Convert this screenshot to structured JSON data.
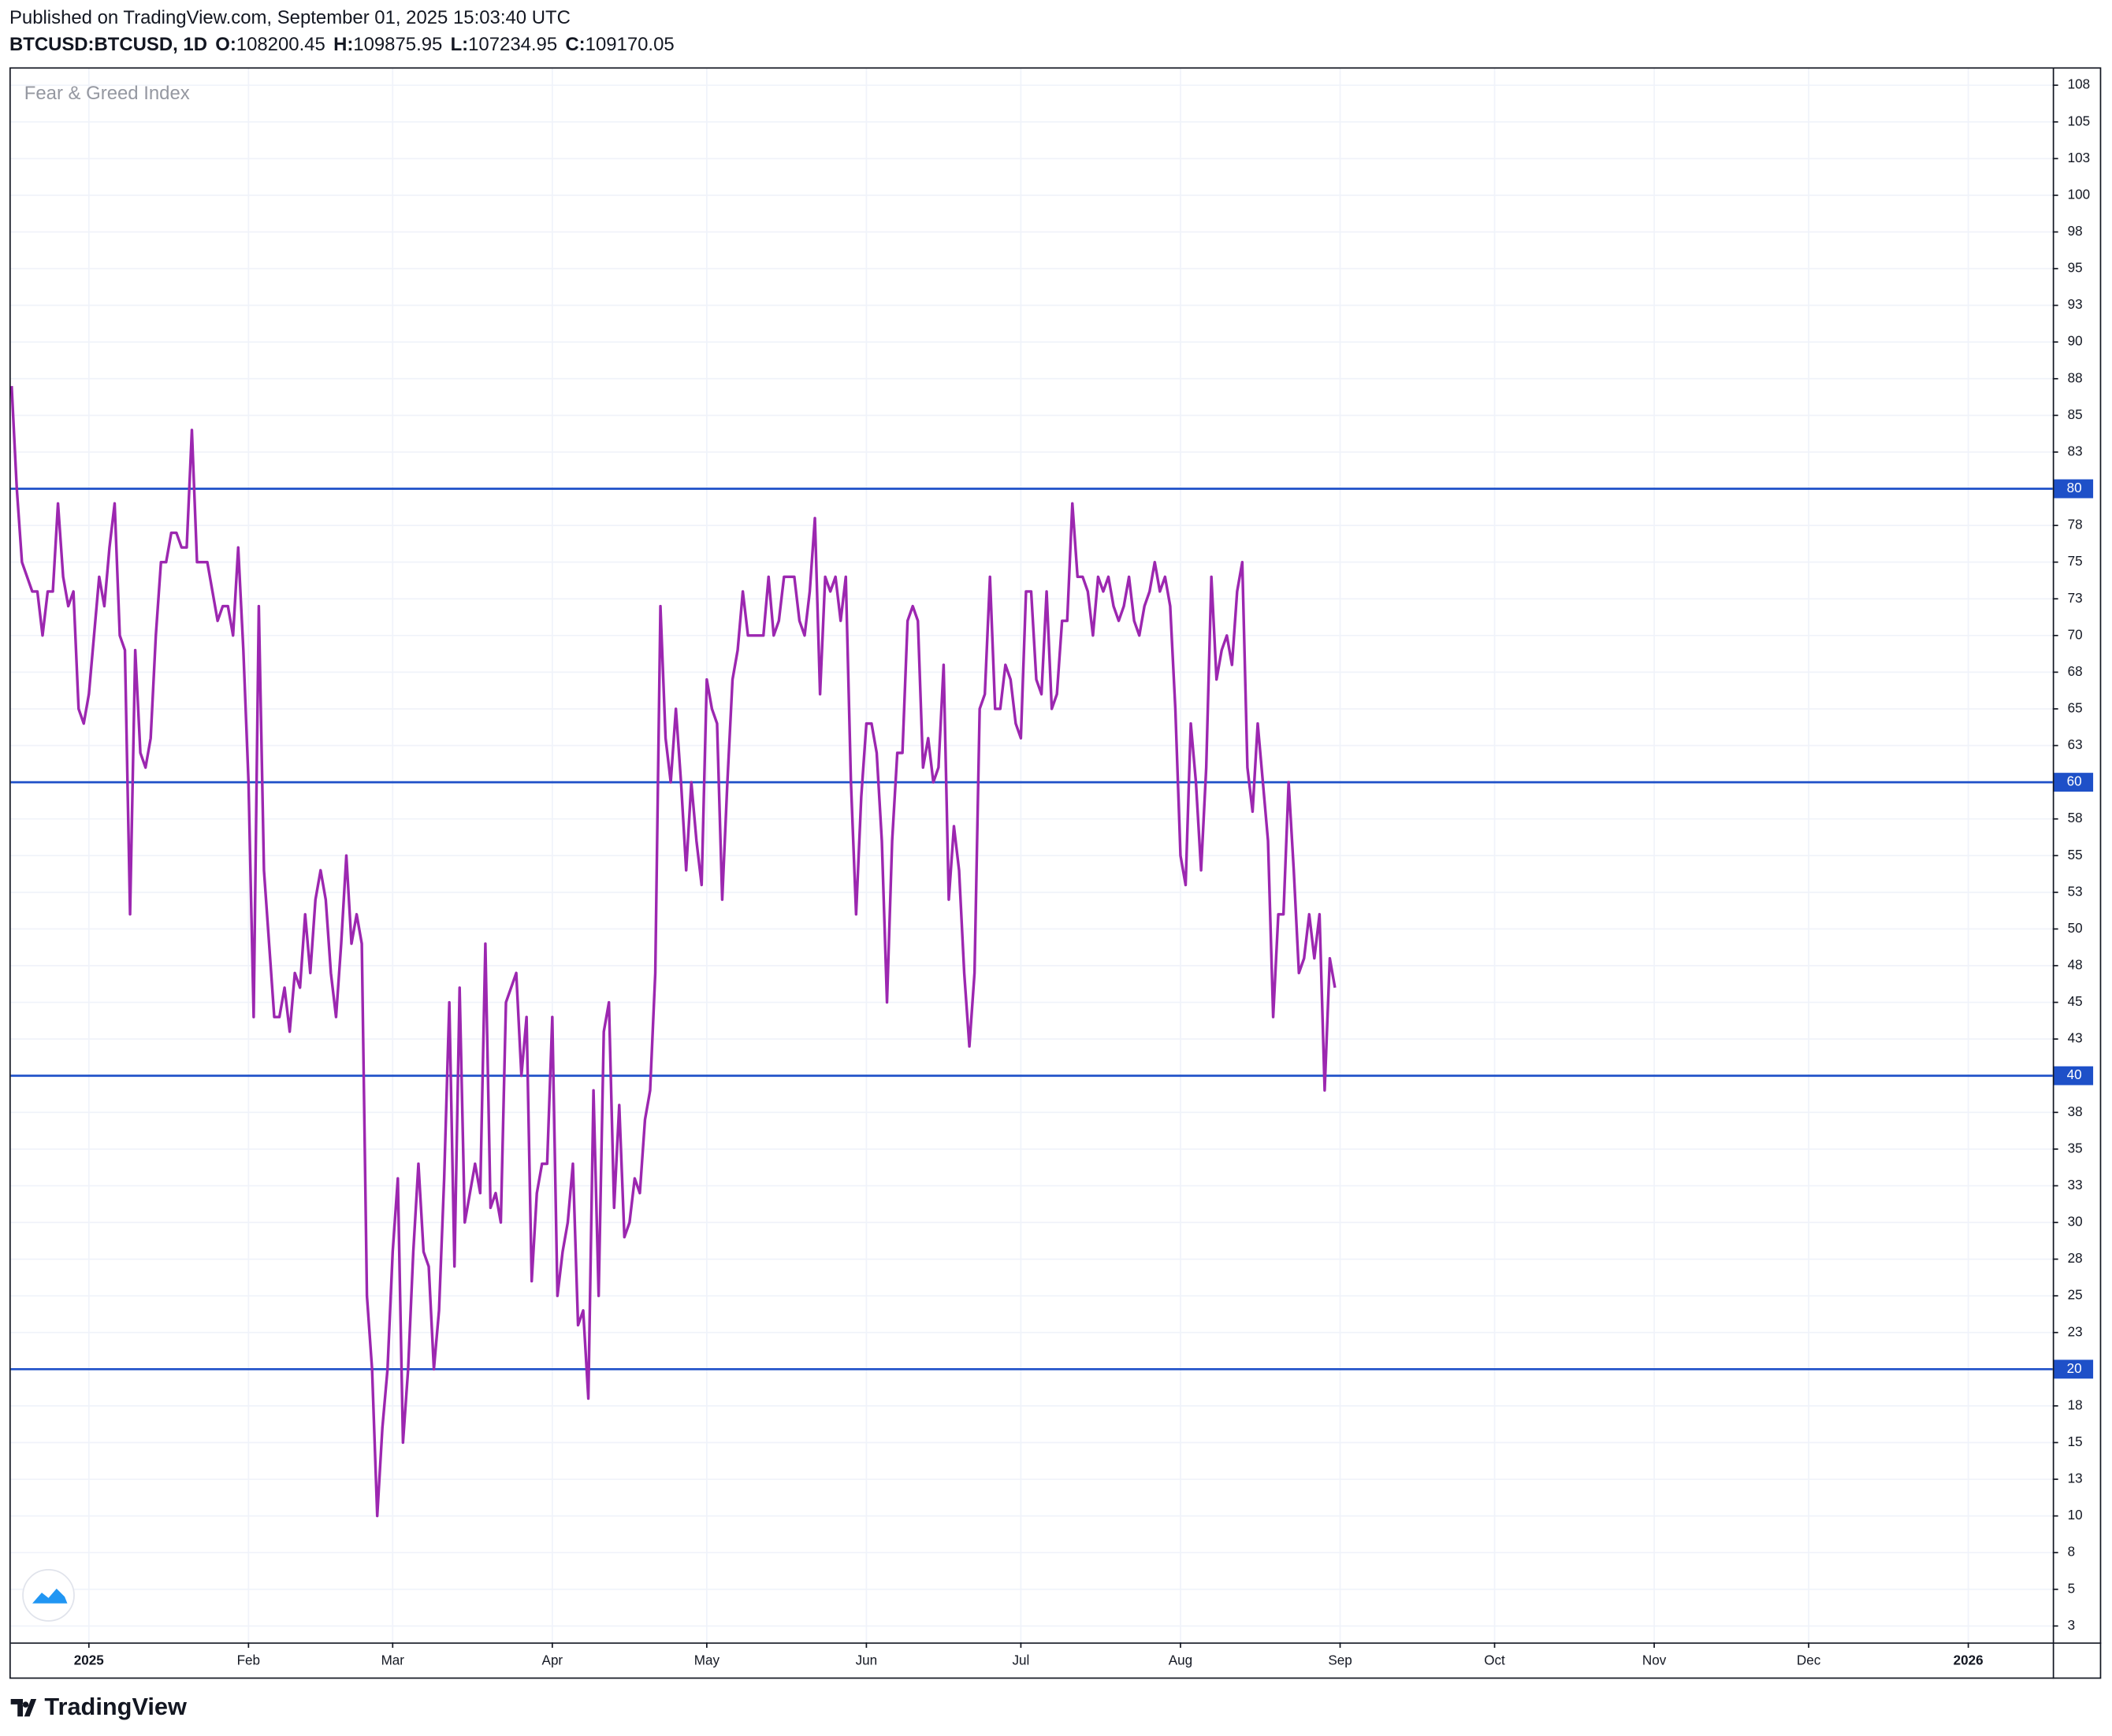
{
  "header": {
    "published": "Published on TradingView.com, September 01, 2025 15:03:40 UTC",
    "symbol": "BTCUSD:BTCUSD, 1D",
    "ohlc": [
      {
        "label": "O:",
        "value": 108200.45
      },
      {
        "label": "H:",
        "value": 109875.95
      },
      {
        "label": "L:",
        "value": 107234.95
      },
      {
        "label": "C:",
        "value": 109170.05
      }
    ]
  },
  "logo": "TradingView",
  "chart_data": {
    "type": "line",
    "x": [
      -15,
      -14,
      -13,
      -12,
      -11,
      -10,
      -9,
      -8,
      -7,
      -6,
      -5,
      -4,
      -3,
      -2,
      -1,
      0,
      1,
      2,
      3,
      4,
      5,
      6,
      7,
      8,
      9,
      10,
      11,
      12,
      13,
      14,
      15,
      16,
      17,
      18,
      19,
      20,
      21,
      22,
      23,
      24,
      25,
      26,
      27,
      28,
      29,
      30,
      31,
      32,
      33,
      34,
      35,
      36,
      37,
      38,
      39,
      40,
      41,
      42,
      43,
      44,
      45,
      46,
      47,
      48,
      49,
      50,
      51,
      52,
      53,
      54,
      55,
      56,
      57,
      58,
      59,
      60,
      61,
      62,
      63,
      64,
      65,
      66,
      67,
      68,
      69,
      70,
      71,
      72,
      73,
      74,
      75,
      76,
      77,
      78,
      79,
      80,
      81,
      82,
      83,
      84,
      85,
      86,
      87,
      88,
      89,
      90,
      91,
      92,
      93,
      94,
      95,
      96,
      97,
      98,
      99,
      100,
      101,
      102,
      103,
      104,
      105,
      106,
      107,
      108,
      109,
      110,
      111,
      112,
      113,
      114,
      115,
      116,
      117,
      118,
      119,
      120,
      121,
      122,
      123,
      124,
      125,
      126,
      127,
      128,
      129,
      130,
      131,
      132,
      133,
      134,
      135,
      136,
      137,
      138,
      139,
      140,
      141,
      142,
      143,
      144,
      145,
      146,
      147,
      148,
      149,
      150,
      151,
      152,
      153,
      154,
      155,
      156,
      157,
      158,
      159,
      160,
      161,
      162,
      163,
      164,
      165,
      166,
      167,
      168,
      169,
      170,
      171,
      172,
      173,
      174,
      175,
      176,
      177,
      178,
      179,
      180,
      181,
      182,
      183,
      184,
      185,
      186,
      187,
      188,
      189,
      190,
      191,
      192,
      193,
      194,
      195,
      196,
      197,
      198,
      199,
      200,
      201,
      202,
      203,
      204,
      205,
      206,
      207,
      208,
      209,
      210,
      211,
      212,
      213,
      214,
      215,
      216,
      217,
      218,
      219,
      220,
      221,
      222,
      223,
      224,
      225,
      226,
      227,
      228,
      229,
      230,
      231,
      232,
      233,
      234,
      235,
      236,
      237,
      238,
      239,
      240,
      241,
      242
    ],
    "series": [
      {
        "name": "Fear & Greed Index",
        "color": "#9c27b0",
        "values": [
          87,
          80,
          75,
          74,
          73,
          73,
          70,
          73,
          73,
          79,
          74,
          72,
          73,
          65,
          64,
          66,
          70,
          74,
          72,
          76,
          79,
          70,
          69,
          51,
          69,
          62,
          61,
          63,
          70,
          75,
          75,
          77,
          77,
          76,
          76,
          84,
          75,
          75,
          75,
          73,
          71,
          72,
          72,
          70,
          76,
          69,
          60,
          44,
          72,
          54,
          49,
          44,
          44,
          46,
          43,
          47,
          46,
          51,
          47,
          52,
          54,
          52,
          47,
          44,
          49,
          55,
          49,
          51,
          49,
          25,
          20,
          10,
          16,
          20,
          28,
          33,
          15,
          20,
          28,
          34,
          28,
          27,
          20,
          24,
          33,
          45,
          27,
          46,
          30,
          32,
          34,
          32,
          49,
          31,
          32,
          30,
          45,
          46,
          47,
          40,
          44,
          26,
          32,
          34,
          34,
          44,
          25,
          28,
          30,
          34,
          23,
          24,
          18,
          39,
          25,
          43,
          45,
          31,
          38,
          29,
          30,
          33,
          32,
          37,
          39,
          47,
          72,
          63,
          60,
          65,
          60,
          54,
          60,
          56,
          53,
          67,
          65,
          64,
          52,
          60,
          67,
          69,
          73,
          70,
          70,
          70,
          70,
          74,
          70,
          71,
          74,
          74,
          74,
          71,
          70,
          73,
          78,
          66,
          74,
          73,
          74,
          71,
          74,
          60,
          51,
          59,
          64,
          64,
          62,
          56,
          45,
          56,
          62,
          62,
          71,
          72,
          71,
          61,
          63,
          60,
          61,
          68,
          52,
          57,
          54,
          47,
          42,
          47,
          65,
          66,
          74,
          65,
          65,
          68,
          67,
          64,
          63,
          73,
          73,
          67,
          66,
          73,
          65,
          66,
          71,
          71,
          79,
          74,
          74,
          73,
          70,
          74,
          73,
          74,
          72,
          71,
          72,
          74,
          71,
          70,
          72,
          73,
          75,
          73,
          74,
          72,
          65,
          55,
          53,
          64,
          60,
          54,
          61,
          74,
          67,
          69,
          70,
          68,
          73,
          75,
          61,
          58,
          64,
          60,
          56,
          44,
          51,
          51,
          60,
          54,
          47,
          48,
          51,
          48,
          51,
          39,
          48,
          46
        ]
      }
    ],
    "xlim": [
      -15.17,
      381.4
    ],
    "xticks": [
      {
        "value": 0,
        "label": "2025"
      },
      {
        "value": 31,
        "label": "Feb"
      },
      {
        "value": 59,
        "label": "Mar"
      },
      {
        "value": 90,
        "label": "Apr"
      },
      {
        "value": 120,
        "label": "May"
      },
      {
        "value": 151,
        "label": "Jun"
      },
      {
        "value": 181,
        "label": "Jul"
      },
      {
        "value": 212,
        "label": "Aug"
      },
      {
        "value": 243,
        "label": "Sep"
      },
      {
        "value": 273,
        "label": "Oct"
      },
      {
        "value": 304,
        "label": "Nov"
      },
      {
        "value": 334,
        "label": "Dec"
      },
      {
        "value": 365,
        "label": "2026"
      }
    ],
    "ylim": [
      1.38,
      108.72
    ],
    "yticks": [
      {
        "value": 2.5,
        "label": "3"
      },
      5,
      {
        "value": 7.5,
        "label": "8"
      },
      10,
      {
        "value": 12.5,
        "label": "13"
      },
      15,
      {
        "value": 17.5,
        "label": "18"
      },
      {
        "value": 22.5,
        "label": "23"
      },
      25,
      {
        "value": 27.5,
        "label": "28"
      },
      30,
      {
        "value": 32.5,
        "label": "33"
      },
      35,
      {
        "value": 37.5,
        "label": "38"
      },
      {
        "value": 42.5,
        "label": "43"
      },
      45,
      {
        "value": 47.5,
        "label": "48"
      },
      50,
      {
        "value": 52.5,
        "label": "53"
      },
      55,
      {
        "value": 57.5,
        "label": "58"
      },
      {
        "value": 62.5,
        "label": "63"
      },
      65,
      {
        "value": 67.5,
        "label": "68"
      },
      70,
      {
        "value": 72.5,
        "label": "73"
      },
      75,
      {
        "value": 77.5,
        "label": "78"
      },
      {
        "value": 82.5,
        "label": "83"
      },
      85,
      {
        "value": 87.5,
        "label": "88"
      },
      90,
      {
        "value": 92.5,
        "label": "93"
      },
      95,
      {
        "value": 97.5,
        "label": "98"
      },
      100,
      {
        "value": 102.5,
        "label": "103"
      },
      105,
      {
        "value": 107.5,
        "label": "108"
      }
    ],
    "hlines": [
      80,
      60,
      40,
      20
    ],
    "hline_color": "#1e50c8",
    "grid": true
  }
}
